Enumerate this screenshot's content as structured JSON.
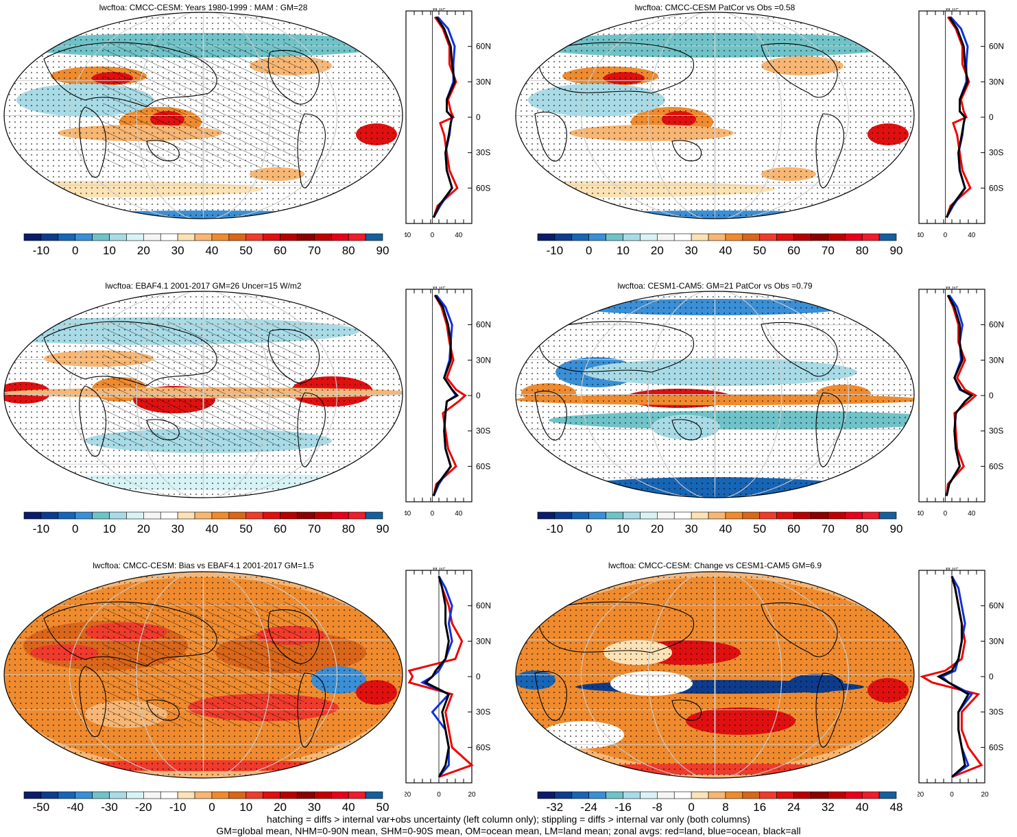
{
  "panels": [
    {
      "title": "lwcftoa: CMCC-CESM: Years 1980-1999 : MAM : GM=28",
      "scale": "abs",
      "hatch": true
    },
    {
      "title": "lwcftoa: CMCC-CESM PatCor vs Obs =0.58",
      "scale": "abs",
      "hatch": false
    },
    {
      "title": "lwcftoa: EBAF4.1 2001-2017 GM=26 Uncer=15 W/m2",
      "scale": "abs",
      "hatch": true
    },
    {
      "title": "lwcftoa: CESM1-CAM5: GM=21 PatCor vs Obs =0.79",
      "scale": "abs",
      "hatch": false
    },
    {
      "title": "lwcftoa: CMCC-CESM: Bias vs EBAF4.1 2001-2017 GM=1.5",
      "scale": "bias",
      "hatch": true
    },
    {
      "title": "lwcftoa: CMCC-CESM: Change vs CESM1-CAM5 GM=6.9",
      "scale": "change",
      "hatch": false
    }
  ],
  "colorbars": {
    "abs": {
      "labels": [
        "-10",
        "0",
        "10",
        "20",
        "30",
        "40",
        "50",
        "60",
        "70",
        "80",
        "90"
      ],
      "colors": [
        "#0b1c6b",
        "#0d3c8c",
        "#1765b5",
        "#3a8fd6",
        "#6fc3c8",
        "#a8dbe6",
        "#d8f3f5",
        "#f5f5f5",
        "#ffffff",
        "#fce2b4",
        "#f7b673",
        "#ef8b2e",
        "#d9661a",
        "#ef3b2c",
        "#e01010",
        "#b80000",
        "#8c0000",
        "#c00000",
        "#e8001a",
        "#ef1c2c",
        "#165f9c"
      ]
    },
    "bias": {
      "labels": [
        "-50",
        "-40",
        "-30",
        "-20",
        "-10",
        "0",
        "10",
        "20",
        "30",
        "40",
        "50"
      ],
      "colors": [
        "#0b1c6b",
        "#0d3c8c",
        "#1765b5",
        "#3a8fd6",
        "#6fc3c8",
        "#a8dbe6",
        "#d8f3f5",
        "#f5f5f5",
        "#ffffff",
        "#fce2b4",
        "#f7b673",
        "#ef8b2e",
        "#d9661a",
        "#ef3b2c",
        "#e01010",
        "#b80000",
        "#8c0000",
        "#c00000",
        "#e8001a",
        "#ef1c2c",
        "#165f9c"
      ]
    },
    "change": {
      "labels": [
        "-32",
        "-24",
        "-16",
        "-8",
        "0",
        "8",
        "16",
        "24",
        "32",
        "40",
        "48"
      ],
      "colors": [
        "#0b1c6b",
        "#0d3c8c",
        "#1765b5",
        "#3a8fd6",
        "#6fc3c8",
        "#a8dbe6",
        "#d8f3f5",
        "#f5f5f5",
        "#ffffff",
        "#fce2b4",
        "#f7b673",
        "#ef8b2e",
        "#d9661a",
        "#ef3b2c",
        "#e01010",
        "#b80000",
        "#8c0000",
        "#c00000",
        "#e8001a",
        "#ef1c2c",
        "#165f9c"
      ]
    }
  },
  "zonal_units": "W m²",
  "lat_ticks": [
    "60N",
    "30N",
    "0",
    "30S",
    "60S"
  ],
  "footer": {
    "line1": "hatching = diffs > internal var+obs uncertainty (left column only); stippling = diffs > internal var only (both columns)",
    "line2": "GM=global mean, NHM=0-90N mean, SHM=0-90S mean, OM=ocean mean, LM=land mean; zonal avgs: red=land, blue=ocean, black=all"
  },
  "chart_data": [
    {
      "type": "heatmap",
      "title": "lwcftoa: CMCC-CESM: Years 1980-1999 : MAM : GM=28",
      "colorbar_ticks": [
        -10,
        0,
        10,
        20,
        30,
        40,
        50,
        60,
        70,
        80,
        90
      ],
      "zonal_mean": {
        "x_ticks": [
          "-40",
          "0",
          "40"
        ],
        "xlim": [
          -40,
          60
        ],
        "lat": [
          -85,
          -75,
          -60,
          -45,
          -30,
          -15,
          -5,
          0,
          5,
          15,
          30,
          45,
          60,
          75,
          85
        ],
        "series": [
          {
            "name": "all",
            "color": "black",
            "values": [
              2,
              10,
              30,
              22,
              20,
              25,
              28,
              30,
              22,
              22,
              34,
              30,
              28,
              18,
              6
            ]
          },
          {
            "name": "ocean",
            "color": "blue",
            "values": [
              2,
              12,
              30,
              22,
              20,
              26,
              28,
              30,
              22,
              22,
              32,
              32,
              34,
              24,
              8
            ]
          },
          {
            "name": "land",
            "color": "red",
            "values": [
              2,
              8,
              38,
              26,
              22,
              18,
              12,
              32,
              28,
              24,
              36,
              26,
              26,
              16,
              4
            ]
          }
        ]
      }
    },
    {
      "type": "heatmap",
      "title": "lwcftoa: CMCC-CESM PatCor vs Obs =0.58",
      "colorbar_ticks": [
        -10,
        0,
        10,
        20,
        30,
        40,
        50,
        60,
        70,
        80,
        90
      ],
      "zonal_mean": {
        "x_ticks": [
          "-40",
          "0",
          "40"
        ],
        "xlim": [
          -40,
          60
        ],
        "lat": [
          -85,
          -75,
          -60,
          -45,
          -30,
          -15,
          -5,
          0,
          5,
          15,
          30,
          45,
          60,
          75,
          85
        ],
        "series": [
          {
            "name": "all",
            "color": "black",
            "values": [
              2,
              10,
              30,
              22,
              20,
              25,
              28,
              30,
              22,
              22,
              34,
              30,
              28,
              18,
              6
            ]
          },
          {
            "name": "ocean",
            "color": "blue",
            "values": [
              2,
              12,
              30,
              22,
              20,
              26,
              28,
              30,
              22,
              22,
              32,
              32,
              34,
              24,
              8
            ]
          },
          {
            "name": "land",
            "color": "red",
            "values": [
              2,
              8,
              38,
              26,
              22,
              18,
              12,
              32,
              28,
              24,
              36,
              26,
              26,
              16,
              4
            ]
          }
        ]
      }
    },
    {
      "type": "heatmap",
      "title": "lwcftoa: EBAF4.1 2001-2017 GM=26 Uncer=15 W/m2",
      "colorbar_ticks": [
        -10,
        0,
        10,
        20,
        30,
        40,
        50,
        60,
        70,
        80,
        90
      ],
      "zonal_mean": {
        "x_ticks": [
          "-40",
          "0",
          "40"
        ],
        "xlim": [
          -40,
          60
        ],
        "lat": [
          -85,
          -75,
          -60,
          -45,
          -30,
          -15,
          -5,
          0,
          5,
          15,
          30,
          45,
          60,
          75,
          85
        ],
        "series": [
          {
            "name": "all",
            "color": "black",
            "values": [
              2,
              8,
              28,
              20,
              18,
              20,
              22,
              38,
              30,
              18,
              28,
              28,
              24,
              16,
              4
            ]
          },
          {
            "name": "ocean",
            "color": "blue",
            "values": [
              2,
              10,
              28,
              20,
              18,
              20,
              22,
              36,
              30,
              18,
              26,
              28,
              30,
              20,
              6
            ]
          },
          {
            "name": "land",
            "color": "red",
            "values": [
              2,
              6,
              36,
              24,
              20,
              16,
              40,
              50,
              36,
              22,
              32,
              26,
              22,
              14,
              4
            ]
          }
        ]
      }
    },
    {
      "type": "heatmap",
      "title": "lwcftoa: CESM1-CAM5: GM=21 PatCor vs Obs =0.79",
      "colorbar_ticks": [
        -10,
        0,
        10,
        20,
        30,
        40,
        50,
        60,
        70,
        80,
        90
      ],
      "zonal_mean": {
        "x_ticks": [
          "-40",
          "0",
          "40"
        ],
        "xlim": [
          -40,
          60
        ],
        "lat": [
          -85,
          -75,
          -60,
          -45,
          -30,
          -15,
          -5,
          0,
          5,
          15,
          30,
          45,
          60,
          75,
          85
        ],
        "series": [
          {
            "name": "all",
            "color": "black",
            "values": [
              2,
              6,
              22,
              16,
              14,
              16,
              30,
              40,
              24,
              14,
              26,
              22,
              22,
              14,
              4
            ]
          },
          {
            "name": "ocean",
            "color": "blue",
            "values": [
              2,
              6,
              22,
              16,
              14,
              16,
              30,
              40,
              22,
              14,
              24,
              22,
              26,
              18,
              6
            ]
          },
          {
            "name": "land",
            "color": "red",
            "values": [
              2,
              4,
              28,
              18,
              16,
              14,
              36,
              46,
              30,
              18,
              30,
              20,
              20,
              12,
              4
            ]
          }
        ]
      }
    },
    {
      "type": "heatmap",
      "title": "lwcftoa: CMCC-CESM: Bias vs EBAF4.1 2001-2017 GM=1.5",
      "colorbar_ticks": [
        -50,
        -40,
        -30,
        -20,
        -10,
        0,
        10,
        20,
        30,
        40,
        50
      ],
      "zonal_mean": {
        "x_ticks": [
          "-20",
          "0",
          "20"
        ],
        "xlim": [
          -20,
          20
        ],
        "lat": [
          -85,
          -75,
          -60,
          -45,
          -30,
          -15,
          -5,
          0,
          5,
          15,
          30,
          45,
          60,
          75,
          85
        ],
        "series": [
          {
            "name": "all",
            "color": "black",
            "values": [
              0,
              4,
              6,
              4,
              2,
              6,
              -8,
              -4,
              -2,
              4,
              6,
              4,
              4,
              2,
              0
            ]
          },
          {
            "name": "ocean",
            "color": "blue",
            "values": [
              0,
              6,
              6,
              4,
              -4,
              6,
              -10,
              -4,
              0,
              4,
              8,
              6,
              8,
              4,
              0
            ]
          },
          {
            "name": "land",
            "color": "red",
            "values": [
              0,
              20,
              8,
              6,
              4,
              8,
              -18,
              -16,
              -18,
              10,
              14,
              8,
              6,
              2,
              0
            ]
          }
        ]
      }
    },
    {
      "type": "heatmap",
      "title": "lwcftoa: CMCC-CESM: Change vs CESM1-CAM5 GM=6.9",
      "colorbar_ticks": [
        -32,
        -24,
        -16,
        -8,
        0,
        8,
        16,
        24,
        32,
        40,
        48
      ],
      "zonal_mean": {
        "x_ticks": [
          "-20",
          "0",
          "20"
        ],
        "xlim": [
          -20,
          20
        ],
        "lat": [
          -85,
          -75,
          -60,
          -45,
          -30,
          -15,
          -5,
          0,
          5,
          15,
          30,
          45,
          60,
          75,
          85
        ],
        "series": [
          {
            "name": "all",
            "color": "black",
            "values": [
              0,
              8,
              6,
              4,
              4,
              10,
              -2,
              -8,
              0,
              4,
              6,
              6,
              4,
              2,
              0
            ]
          },
          {
            "name": "ocean",
            "color": "blue",
            "values": [
              0,
              10,
              6,
              4,
              4,
              12,
              -2,
              -6,
              2,
              4,
              6,
              8,
              6,
              4,
              0
            ]
          },
          {
            "name": "land",
            "color": "red",
            "values": [
              0,
              18,
              10,
              6,
              6,
              16,
              -12,
              -18,
              -4,
              6,
              8,
              6,
              4,
              2,
              0
            ]
          }
        ]
      }
    }
  ]
}
